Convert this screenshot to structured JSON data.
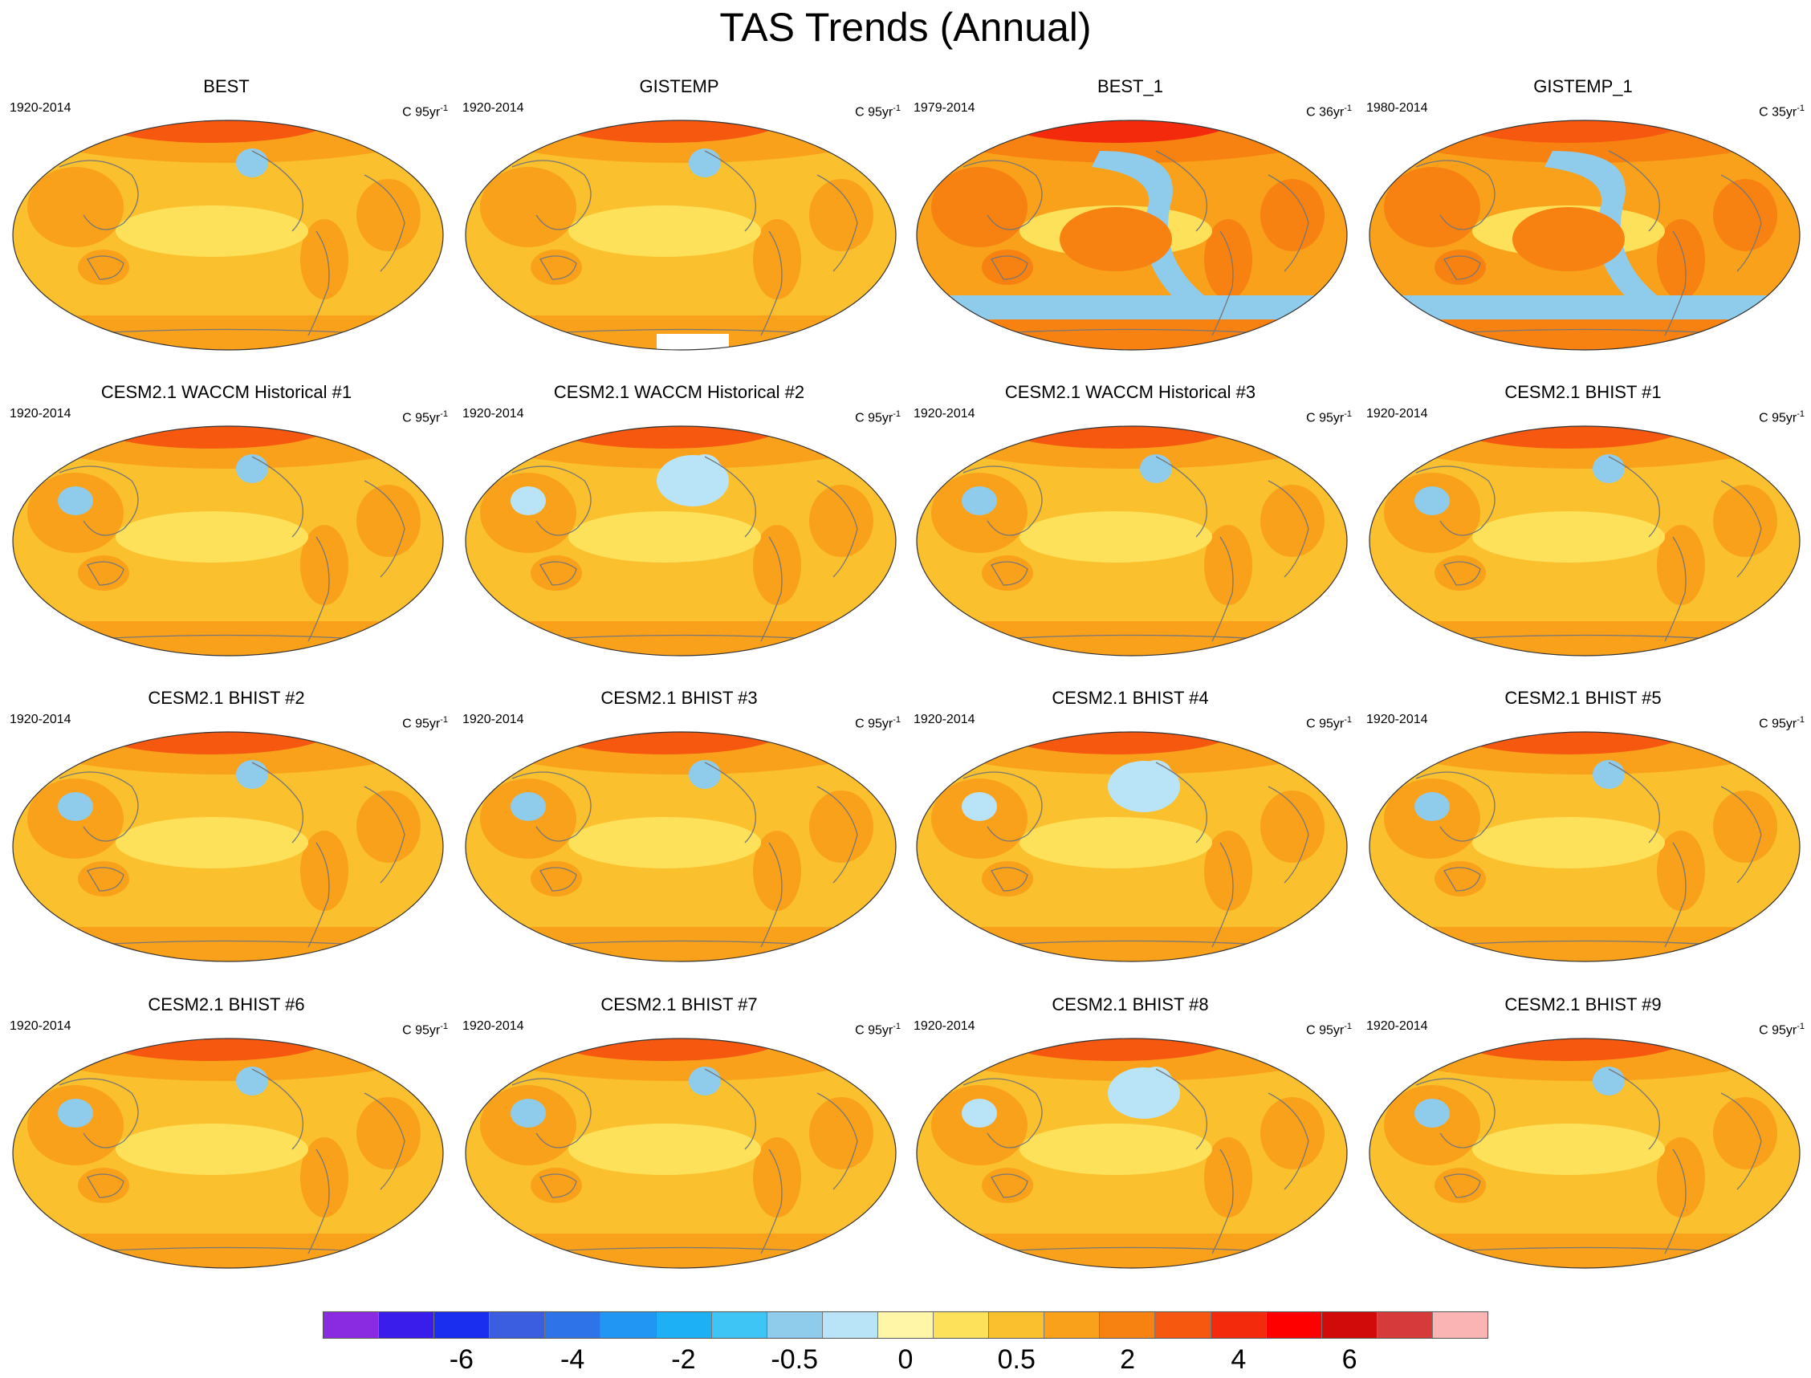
{
  "title": "TAS Trends (Annual)",
  "panels": [
    {
      "title": "BEST",
      "period": "1920-2014",
      "units_base": "C 95yr",
      "units_exp": "-1",
      "style": "obs1"
    },
    {
      "title": "GISTEMP",
      "period": "1920-2014",
      "units_base": "C 95yr",
      "units_exp": "-1",
      "style": "obs2"
    },
    {
      "title": "BEST_1",
      "period": "1979-2014",
      "units_base": "C 36yr",
      "units_exp": "-1",
      "style": "recent"
    },
    {
      "title": "GISTEMP_1",
      "period": "1980-2014",
      "units_base": "C 35yr",
      "units_exp": "-1",
      "style": "recent2"
    },
    {
      "title": "CESM2.1 WACCM Historical #1",
      "period": "1920-2014",
      "units_base": "C 95yr",
      "units_exp": "-1",
      "style": "model"
    },
    {
      "title": "CESM2.1 WACCM Historical #2",
      "period": "1920-2014",
      "units_base": "C 95yr",
      "units_exp": "-1",
      "style": "model2"
    },
    {
      "title": "CESM2.1 WACCM Historical #3",
      "period": "1920-2014",
      "units_base": "C 95yr",
      "units_exp": "-1",
      "style": "model"
    },
    {
      "title": "CESM2.1 BHIST #1",
      "period": "1920-2014",
      "units_base": "C 95yr",
      "units_exp": "-1",
      "style": "model"
    },
    {
      "title": "CESM2.1 BHIST #2",
      "period": "1920-2014",
      "units_base": "C 95yr",
      "units_exp": "-1",
      "style": "model"
    },
    {
      "title": "CESM2.1 BHIST #3",
      "period": "1920-2014",
      "units_base": "C 95yr",
      "units_exp": "-1",
      "style": "model"
    },
    {
      "title": "CESM2.1 BHIST #4",
      "period": "1920-2014",
      "units_base": "C 95yr",
      "units_exp": "-1",
      "style": "model2"
    },
    {
      "title": "CESM2.1 BHIST #5",
      "period": "1920-2014",
      "units_base": "C 95yr",
      "units_exp": "-1",
      "style": "model"
    },
    {
      "title": "CESM2.1 BHIST #6",
      "period": "1920-2014",
      "units_base": "C 95yr",
      "units_exp": "-1",
      "style": "model"
    },
    {
      "title": "CESM2.1 BHIST #7",
      "period": "1920-2014",
      "units_base": "C 95yr",
      "units_exp": "-1",
      "style": "model"
    },
    {
      "title": "CESM2.1 BHIST #8",
      "period": "1920-2014",
      "units_base": "C 95yr",
      "units_exp": "-1",
      "style": "model2"
    },
    {
      "title": "CESM2.1 BHIST #9",
      "period": "1920-2014",
      "units_base": "C 95yr",
      "units_exp": "-1",
      "style": "model"
    }
  ],
  "colorbar": {
    "colors": [
      "#8a2be2",
      "#3a1dea",
      "#1a2ef0",
      "#3b5ee0",
      "#2e74e8",
      "#2196f3",
      "#1eb0f5",
      "#3ec5f5",
      "#8fcbeb",
      "#b9e3f7",
      "#fff6a8",
      "#fde15a",
      "#fbc02d",
      "#f9a11b",
      "#f78111",
      "#f6580f",
      "#f42a0d",
      "#fe0000",
      "#d10a0a",
      "#d63a3a",
      "#fbb4b4"
    ],
    "labels": [
      {
        "text": "-6",
        "index": 2
      },
      {
        "text": "-4",
        "index": 4
      },
      {
        "text": "-2",
        "index": 6
      },
      {
        "text": "-0.5",
        "index": 8
      },
      {
        "text": "0",
        "index": 10
      },
      {
        "text": "0.5",
        "index": 12
      },
      {
        "text": "2",
        "index": 14
      },
      {
        "text": "4",
        "index": 16
      },
      {
        "text": "6",
        "index": 18
      }
    ]
  }
}
